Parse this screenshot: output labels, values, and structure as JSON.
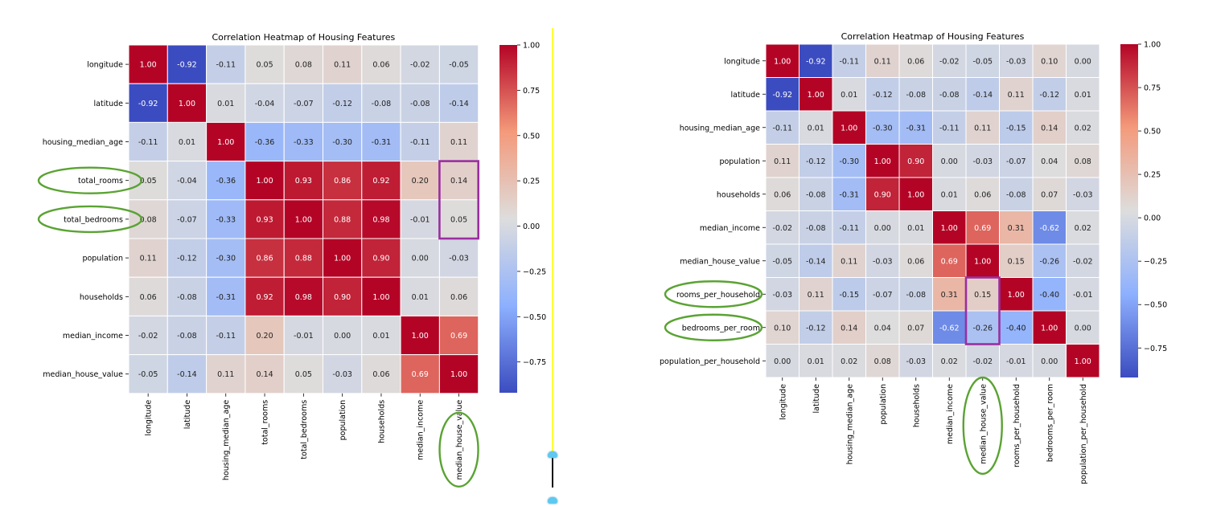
{
  "colors": {
    "low": "#3b4cc0",
    "mid": "#dddddd",
    "high": "#b40426",
    "annotation_green": "#5aa333",
    "annotation_purple": "#9a2fa0",
    "divider": "#ffff33"
  },
  "chart_data": [
    {
      "type": "heatmap",
      "title": "Correlation Heatmap of Housing Features",
      "labels": [
        "longitude",
        "latitude",
        "housing_median_age",
        "total_rooms",
        "total_bedrooms",
        "population",
        "households",
        "median_income",
        "median_house_value"
      ],
      "matrix": [
        [
          1.0,
          -0.92,
          -0.11,
          0.05,
          0.08,
          0.11,
          0.06,
          -0.02,
          -0.05
        ],
        [
          -0.92,
          1.0,
          0.01,
          -0.04,
          -0.07,
          -0.12,
          -0.08,
          -0.08,
          -0.14
        ],
        [
          -0.11,
          0.01,
          1.0,
          -0.36,
          -0.33,
          -0.3,
          -0.31,
          -0.11,
          0.11
        ],
        [
          0.05,
          -0.04,
          -0.36,
          1.0,
          0.93,
          0.86,
          0.92,
          0.2,
          0.14
        ],
        [
          0.08,
          -0.07,
          -0.33,
          0.93,
          1.0,
          0.88,
          0.98,
          -0.01,
          0.05
        ],
        [
          0.11,
          -0.12,
          -0.3,
          0.86,
          0.88,
          1.0,
          0.9,
          0.0,
          -0.03
        ],
        [
          0.06,
          -0.08,
          -0.31,
          0.92,
          0.98,
          0.9,
          1.0,
          0.01,
          0.06
        ],
        [
          -0.02,
          -0.08,
          -0.11,
          0.2,
          -0.01,
          0.0,
          0.01,
          1.0,
          0.69
        ],
        [
          -0.05,
          -0.14,
          0.11,
          0.14,
          0.05,
          -0.03,
          0.06,
          0.69,
          1.0
        ]
      ],
      "colorbar_ticks": [
        "1.00",
        "0.75",
        "0.50",
        "0.25",
        "0.00",
        "−0.25",
        "−0.50",
        "−0.75"
      ],
      "colorbar_tick_values": [
        1.0,
        0.75,
        0.5,
        0.25,
        0.0,
        -0.25,
        -0.5,
        -0.75
      ],
      "vmin": -0.92,
      "vmax": 1.0,
      "colormap": "coolwarm",
      "highlight_rows": [
        "total_rooms",
        "total_bedrooms"
      ],
      "highlight_columns": [
        "median_house_value"
      ]
    },
    {
      "type": "heatmap",
      "title": "Correlation Heatmap of Housing Features",
      "labels": [
        "longitude",
        "latitude",
        "housing_median_age",
        "population",
        "households",
        "median_income",
        "median_house_value",
        "rooms_per_household",
        "bedrooms_per_room",
        "population_per_household"
      ],
      "matrix": [
        [
          1.0,
          -0.92,
          -0.11,
          0.11,
          0.06,
          -0.02,
          -0.05,
          -0.03,
          0.1,
          -0.0
        ],
        [
          -0.92,
          1.0,
          0.01,
          -0.12,
          -0.08,
          -0.08,
          -0.14,
          0.11,
          -0.12,
          0.01
        ],
        [
          -0.11,
          0.01,
          1.0,
          -0.3,
          -0.31,
          -0.11,
          0.11,
          -0.15,
          0.14,
          0.02
        ],
        [
          0.11,
          -0.12,
          -0.3,
          1.0,
          0.9,
          0.0,
          -0.03,
          -0.07,
          0.04,
          0.08
        ],
        [
          0.06,
          -0.08,
          -0.31,
          0.9,
          1.0,
          0.01,
          0.06,
          -0.08,
          0.07,
          -0.03
        ],
        [
          -0.02,
          -0.08,
          -0.11,
          0.0,
          0.01,
          1.0,
          0.69,
          0.31,
          -0.62,
          0.02
        ],
        [
          -0.05,
          -0.14,
          0.11,
          -0.03,
          0.06,
          0.69,
          1.0,
          0.15,
          -0.26,
          -0.02
        ],
        [
          -0.03,
          0.11,
          -0.15,
          -0.07,
          -0.08,
          0.31,
          0.15,
          1.0,
          -0.4,
          -0.01
        ],
        [
          0.1,
          -0.12,
          0.14,
          0.04,
          0.07,
          -0.62,
          -0.26,
          -0.4,
          1.0,
          0.0
        ],
        [
          -0.0,
          0.01,
          0.02,
          0.08,
          -0.03,
          0.02,
          -0.02,
          -0.01,
          0.0,
          1.0
        ]
      ],
      "colorbar_ticks": [
        "1.00",
        "0.75",
        "0.50",
        "0.25",
        "0.00",
        "−0.25",
        "−0.50",
        "−0.75"
      ],
      "colorbar_tick_values": [
        1.0,
        0.75,
        0.5,
        0.25,
        0.0,
        -0.25,
        -0.5,
        -0.75
      ],
      "vmin": -0.92,
      "vmax": 1.0,
      "colormap": "coolwarm",
      "highlight_rows": [
        "rooms_per_household",
        "bedrooms_per_room"
      ],
      "highlight_columns": [
        "median_house_value"
      ]
    }
  ]
}
